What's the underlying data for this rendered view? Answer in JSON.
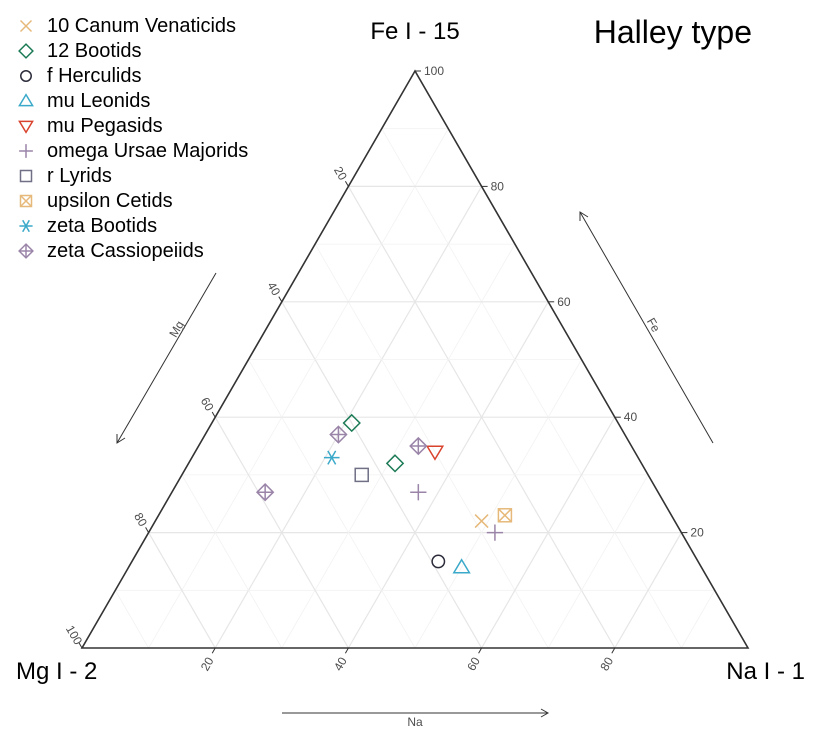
{
  "chart_data": {
    "type": "scatter",
    "subtype": "ternary",
    "title": "Halley type",
    "vertices": {
      "top": "Fe I - 15",
      "left": "Mg I - 2",
      "right": "Na I - 1"
    },
    "axes": {
      "fe": {
        "label": "Fe",
        "ticks": [
          "20",
          "40",
          "60",
          "80",
          "100"
        ]
      },
      "mg": {
        "label": "Mg",
        "ticks": [
          "20",
          "40",
          "60",
          "80",
          "100"
        ]
      },
      "na": {
        "label": "Na",
        "ticks": [
          "20",
          "40",
          "60",
          "80"
        ]
      }
    },
    "range": [
      0,
      100
    ],
    "grid": true,
    "legend_position": "top-left",
    "series": [
      {
        "name": "10 Canum Venaticids",
        "marker": "x",
        "color": "#E6B97A",
        "points": [
          {
            "fe": 22,
            "mg": 29,
            "na": 49
          }
        ]
      },
      {
        "name": "12 Bootids",
        "marker": "diamond",
        "color": "#1A7A55",
        "points": [
          {
            "fe": 39,
            "mg": 40,
            "na": 21
          },
          {
            "fe": 32,
            "mg": 37,
            "na": 31
          }
        ]
      },
      {
        "name": "f Herculids",
        "marker": "circle",
        "color": "#2B2B3A",
        "points": [
          {
            "fe": 15,
            "mg": 39,
            "na": 46
          }
        ]
      },
      {
        "name": "mu Leonids",
        "marker": "triangle-up",
        "color": "#3BA9C9",
        "points": [
          {
            "fe": 14,
            "mg": 36,
            "na": 50
          }
        ]
      },
      {
        "name": "mu Pegasids",
        "marker": "triangle-down",
        "color": "#D9432E",
        "points": [
          {
            "fe": 34,
            "mg": 30,
            "na": 36
          }
        ]
      },
      {
        "name": "omega Ursae Majorids",
        "marker": "plus",
        "color": "#9A84A8",
        "points": [
          {
            "fe": 27,
            "mg": 36,
            "na": 37
          },
          {
            "fe": 20,
            "mg": 28,
            "na": 52
          }
        ]
      },
      {
        "name": "r Lyrids",
        "marker": "square",
        "color": "#6F6F86",
        "points": [
          {
            "fe": 30,
            "mg": 43,
            "na": 27
          }
        ]
      },
      {
        "name": "upsilon Cetids",
        "marker": "square-x",
        "color": "#E6B97A",
        "points": [
          {
            "fe": 23,
            "mg": 25,
            "na": 52
          }
        ]
      },
      {
        "name": "zeta Bootids",
        "marker": "asterisk",
        "color": "#3BA9C9",
        "points": [
          {
            "fe": 33,
            "mg": 46,
            "na": 21
          }
        ]
      },
      {
        "name": "zeta Cassiopeiids",
        "marker": "diamond-plus",
        "color": "#9A84A8",
        "points": [
          {
            "fe": 37,
            "mg": 43,
            "na": 20
          },
          {
            "fe": 35,
            "mg": 32,
            "na": 33
          },
          {
            "fe": 27,
            "mg": 59,
            "na": 14
          }
        ]
      }
    ]
  }
}
